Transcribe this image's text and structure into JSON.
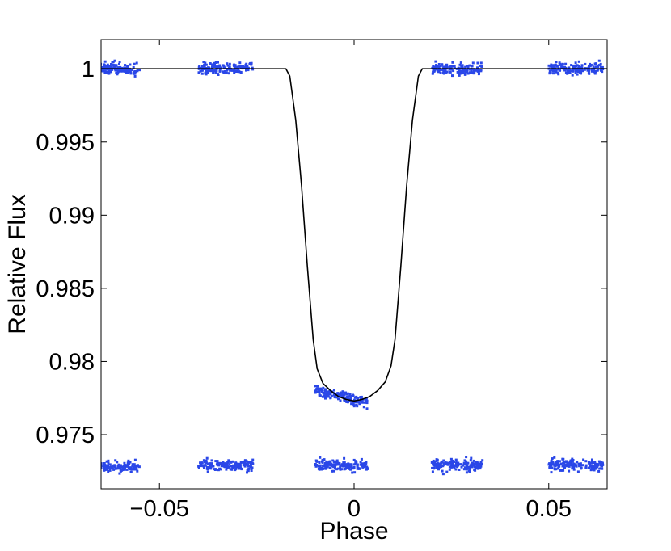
{
  "chart_data": {
    "type": "scatter",
    "xlabel": "Phase",
    "ylabel": "Relative Flux",
    "xlim": [
      -0.065,
      0.065
    ],
    "ylim": [
      0.9713,
      1.002
    ],
    "grid": false,
    "legend": "none",
    "x_ticks": [
      {
        "value": -0.05,
        "label": "−0.05"
      },
      {
        "value": 0,
        "label": "0"
      },
      {
        "value": 0.05,
        "label": "0.05"
      }
    ],
    "y_ticks": [
      {
        "value": 0.975,
        "label": "0.975"
      },
      {
        "value": 0.98,
        "label": "0.98"
      },
      {
        "value": 0.985,
        "label": "0.985"
      },
      {
        "value": 0.99,
        "label": "0.99"
      },
      {
        "value": 0.995,
        "label": "0.995"
      },
      {
        "value": 1.0,
        "label": "1"
      }
    ],
    "series": [
      {
        "kind": "model",
        "color": "#000000",
        "x": [
          -0.065,
          -0.0175,
          -0.0165,
          -0.015,
          -0.0135,
          -0.012,
          -0.0105,
          -0.0095,
          -0.008,
          -0.006,
          -0.004,
          -0.002,
          0,
          0.002,
          0.004,
          0.006,
          0.008,
          0.0095,
          0.0105,
          0.012,
          0.0135,
          0.015,
          0.0165,
          0.0175,
          0.065
        ],
        "y": [
          1.0,
          1.0,
          0.9995,
          0.9965,
          0.992,
          0.9865,
          0.9815,
          0.9795,
          0.9785,
          0.978,
          0.9776,
          0.9774,
          0.9773,
          0.9774,
          0.9776,
          0.978,
          0.9786,
          0.9797,
          0.9815,
          0.9865,
          0.992,
          0.9965,
          0.9995,
          1.0,
          1.0
        ]
      },
      {
        "kind": "points",
        "color": "#2a47e8",
        "clusters": [
          {
            "x_range": [
              -0.068,
              -0.055
            ],
            "y_center": 1.0,
            "y_spread": 0.0008,
            "n": 150
          },
          {
            "x_range": [
              -0.04,
              -0.026
            ],
            "y_center": 1.0,
            "y_spread": 0.0008,
            "n": 150
          },
          {
            "x_range": [
              -0.01,
              0.0035
            ],
            "y_center": 0.9776,
            "y_spread": 0.0008,
            "n": 150,
            "tilt": -6e-05
          },
          {
            "x_range": [
              0.02,
              0.033
            ],
            "y_center": 1.0,
            "y_spread": 0.0008,
            "n": 150
          },
          {
            "x_range": [
              0.05,
              0.064
            ],
            "y_center": 1.0,
            "y_spread": 0.0008,
            "n": 150
          },
          {
            "x_range": [
              -0.068,
              -0.055
            ],
            "y_center": 0.9728,
            "y_spread": 0.0008,
            "n": 150
          },
          {
            "x_range": [
              -0.04,
              -0.026
            ],
            "y_center": 0.9729,
            "y_spread": 0.0008,
            "n": 150
          },
          {
            "x_range": [
              -0.01,
              0.0035
            ],
            "y_center": 0.9729,
            "y_spread": 0.0008,
            "n": 150
          },
          {
            "x_range": [
              0.02,
              0.033
            ],
            "y_center": 0.9729,
            "y_spread": 0.0008,
            "n": 150
          },
          {
            "x_range": [
              0.05,
              0.064
            ],
            "y_center": 0.9729,
            "y_spread": 0.0008,
            "n": 150
          }
        ]
      }
    ]
  }
}
